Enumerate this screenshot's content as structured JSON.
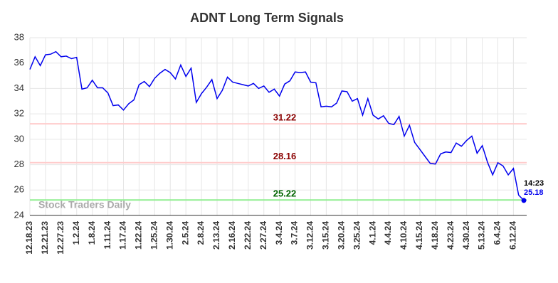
{
  "chart_data": {
    "type": "line",
    "title": "ADNT Long Term Signals",
    "categories": [
      "12.18.23",
      null,
      null,
      "12.21.23",
      null,
      null,
      "12.27.23",
      null,
      null,
      "1.2.24",
      null,
      null,
      "1.8.24",
      null,
      null,
      "1.11.24",
      null,
      null,
      "1.17.24",
      null,
      null,
      "1.22.24",
      null,
      null,
      "1.25.24",
      null,
      null,
      "1.30.24",
      null,
      null,
      "2.5.24",
      null,
      null,
      "2.8.24",
      null,
      null,
      "2.13.24",
      null,
      null,
      "2.16.24",
      null,
      null,
      "2.22.24",
      null,
      null,
      "2.27.24",
      null,
      null,
      "3.4.24",
      null,
      null,
      "3.7.24",
      null,
      null,
      "3.12.24",
      null,
      null,
      "3.15.24",
      null,
      null,
      "3.20.24",
      null,
      null,
      "3.25.24",
      null,
      null,
      "4.1.24",
      null,
      null,
      "4.4.24",
      null,
      null,
      "4.10.24",
      null,
      null,
      "4.15.24",
      null,
      null,
      "4.18.24",
      null,
      null,
      "4.23.24",
      null,
      null,
      "4.30.24",
      null,
      null,
      "5.13.24",
      null,
      null,
      "6.4.24",
      null,
      null,
      "6.12.24",
      null,
      null
    ],
    "values": [
      35.5,
      36.5,
      35.8,
      36.65,
      36.7,
      36.9,
      36.5,
      36.55,
      36.35,
      36.45,
      33.95,
      34.05,
      34.65,
      34.05,
      34.05,
      33.65,
      32.65,
      32.7,
      32.3,
      32.8,
      33.1,
      34.3,
      34.55,
      34.15,
      34.8,
      35.2,
      35.5,
      35.25,
      34.75,
      35.85,
      34.95,
      35.6,
      32.9,
      33.6,
      34.1,
      34.7,
      33.2,
      33.85,
      34.9,
      34.5,
      34.4,
      34.3,
      34.2,
      34.4,
      34.0,
      34.2,
      33.7,
      33.95,
      33.4,
      34.35,
      34.6,
      35.3,
      35.25,
      35.3,
      34.5,
      34.45,
      32.55,
      32.6,
      32.55,
      32.85,
      33.8,
      33.75,
      33.0,
      33.2,
      31.9,
      33.2,
      31.9,
      31.6,
      31.85,
      31.25,
      31.15,
      31.8,
      30.25,
      31.1,
      29.75,
      29.2,
      28.65,
      28.1,
      28.05,
      28.85,
      29.0,
      28.95,
      29.7,
      29.45,
      29.9,
      30.25,
      28.9,
      29.5,
      28.2,
      27.2,
      28.15,
      27.9,
      27.2,
      27.7,
      25.6,
      25.18
    ],
    "color": "#0000ee",
    "ylim": [
      24,
      38
    ],
    "yticks": [
      24,
      26,
      28,
      30,
      32,
      34,
      36,
      38
    ],
    "grid": true,
    "hlines": [
      {
        "value": 31.22,
        "color": "#ffcccc",
        "label_color": "#8b0000"
      },
      {
        "value": 28.16,
        "color": "#ffcccc",
        "label_color": "#8b0000"
      },
      {
        "value": 25.22,
        "color": "#90ee90",
        "label_color": "#006400"
      }
    ],
    "last_time": "14:23",
    "watermark": "Stock Traders Daily"
  }
}
